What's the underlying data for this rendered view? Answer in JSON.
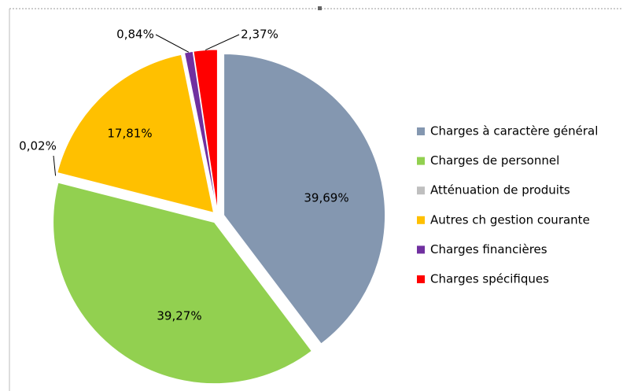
{
  "chart_data": {
    "type": "pie",
    "categories": [
      "Charges à caractère général",
      "Charges de personnel",
      "Atténuation de produits",
      "Autres ch gestion courante",
      "Charges financières",
      "Charges spécifiques"
    ],
    "values": [
      39.69,
      39.27,
      0.02,
      17.81,
      0.84,
      2.37
    ],
    "value_labels": [
      "39,69%",
      "39,27%",
      "0,02%",
      "17,81%",
      "0,84%",
      "2,37%"
    ],
    "colors": [
      "#8497b0",
      "#92d050",
      "#bfbfbf",
      "#ffc000",
      "#7030a0",
      "#ff0000"
    ],
    "legend": "right"
  }
}
